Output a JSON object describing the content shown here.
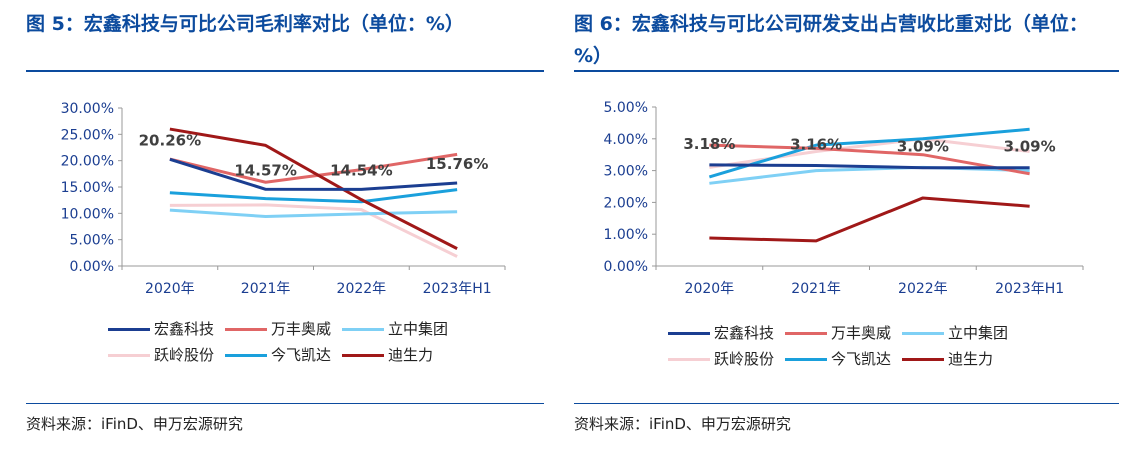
{
  "left": {
    "title": "图 5：宏鑫科技与可比公司毛利率对比（单位：%）",
    "source": "资料来源：iFinD、申万宏源研究",
    "chart_data": {
      "type": "line",
      "categories": [
        "2020年",
        "2021年",
        "2022年",
        "2023年H1"
      ],
      "ylim": [
        0,
        30
      ],
      "yticks": [
        "0.00%",
        "5.00%",
        "10.00%",
        "15.00%",
        "20.00%",
        "25.00%",
        "30.00%"
      ],
      "series": [
        {
          "name": "宏鑫科技",
          "color": "#1b3e91",
          "values": [
            20.26,
            14.57,
            14.54,
            15.76
          ]
        },
        {
          "name": "万丰奥威",
          "color": "#e06666",
          "values": [
            20.3,
            15.9,
            18.3,
            21.2
          ]
        },
        {
          "name": "立中集团",
          "color": "#7fd0f5",
          "values": [
            10.6,
            9.4,
            9.9,
            10.3
          ]
        },
        {
          "name": "跃岭股份",
          "color": "#f6cfd3",
          "values": [
            11.5,
            11.6,
            10.7,
            1.8
          ]
        },
        {
          "name": "今飞凯达",
          "color": "#1aa0dc",
          "values": [
            13.9,
            12.8,
            12.2,
            14.5
          ]
        },
        {
          "name": "迪生力",
          "color": "#a01818",
          "values": [
            26.0,
            22.9,
            12.6,
            3.3
          ]
        }
      ],
      "data_labels": [
        "20.26%",
        "14.57%",
        "14.54%",
        "15.76%"
      ]
    }
  },
  "right": {
    "title": "图 6：宏鑫科技与可比公司研发支出占营收比重对比（单位：%）",
    "source": "资料来源：iFinD、申万宏源研究",
    "chart_data": {
      "type": "line",
      "categories": [
        "2020年",
        "2021年",
        "2022年",
        "2023年H1"
      ],
      "ylim": [
        0,
        5
      ],
      "yticks": [
        "0.00%",
        "1.00%",
        "2.00%",
        "3.00%",
        "4.00%",
        "5.00%"
      ],
      "series": [
        {
          "name": "宏鑫科技",
          "color": "#1b3e91",
          "values": [
            3.18,
            3.16,
            3.09,
            3.09
          ]
        },
        {
          "name": "万丰奥威",
          "color": "#e06666",
          "values": [
            3.8,
            3.7,
            3.5,
            2.9
          ]
        },
        {
          "name": "立中集团",
          "color": "#7fd0f5",
          "values": [
            2.6,
            3.0,
            3.1,
            3.0
          ]
        },
        {
          "name": "跃岭股份",
          "color": "#f6cfd3",
          "values": [
            3.1,
            3.6,
            4.0,
            3.6
          ]
        },
        {
          "name": "今飞凯达",
          "color": "#1aa0dc",
          "values": [
            2.8,
            3.8,
            4.0,
            4.3
          ]
        },
        {
          "name": "迪生力",
          "color": "#a01818",
          "values": [
            0.88,
            0.79,
            2.14,
            1.88
          ]
        }
      ],
      "data_labels": [
        "3.18%",
        "3.16%",
        "3.09%",
        "3.09%"
      ]
    }
  }
}
